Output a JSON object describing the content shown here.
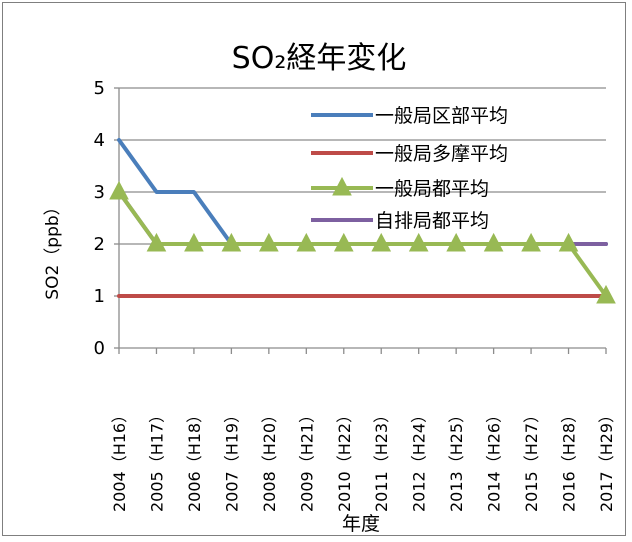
{
  "chart_data": {
    "type": "line",
    "title": "SO₂経年変化",
    "xlabel": "年度",
    "ylabel": "SO2（ppb）",
    "ylim": [
      0,
      5
    ],
    "y_ticks": [
      "0",
      "1",
      "2",
      "3",
      "4",
      "5"
    ],
    "grid": true,
    "legend_position": "top-right",
    "categories": [
      "2004（H16）",
      "2005（H17）",
      "2006（H18）",
      "2007（H19）",
      "2008（H20）",
      "2009（H21）",
      "2010（H22）",
      "2011（H23）",
      "2012（H24）",
      "2013（H25）",
      "2014（H26）",
      "2015（H27）",
      "2016（H28）",
      "2017（H29）"
    ],
    "series": [
      {
        "name": "一般局区部平均",
        "color": "#4a7ebb",
        "marker": "none",
        "values": [
          4,
          3,
          3,
          2,
          2,
          2,
          2,
          2,
          2,
          2,
          2,
          2,
          2,
          2
        ]
      },
      {
        "name": "一般局多摩平均",
        "color": "#be4b48",
        "marker": "none",
        "values": [
          1,
          1,
          1,
          1,
          1,
          1,
          1,
          1,
          1,
          1,
          1,
          1,
          1,
          1
        ]
      },
      {
        "name": "一般局都平均",
        "color": "#98b954",
        "marker": "triangle",
        "values": [
          3,
          2,
          2,
          2,
          2,
          2,
          2,
          2,
          2,
          2,
          2,
          2,
          2,
          1
        ]
      },
      {
        "name": "自排局都平均",
        "color": "#7d60a0",
        "marker": "none",
        "values": [
          3,
          2,
          2,
          2,
          2,
          2,
          2,
          2,
          2,
          2,
          2,
          2,
          2,
          2
        ]
      }
    ]
  }
}
